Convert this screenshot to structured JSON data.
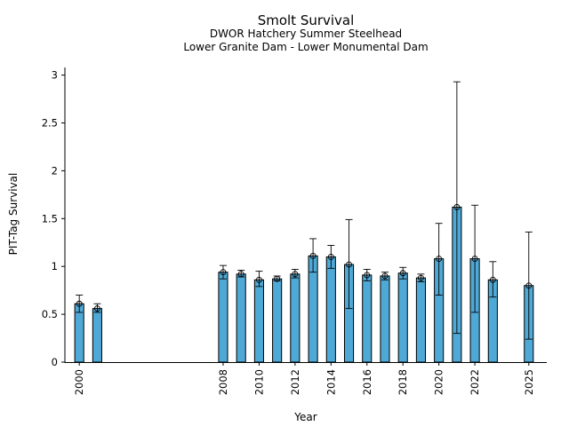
{
  "chart_data": {
    "type": "bar",
    "title": "Smolt Survival",
    "subtitle_lines": [
      "DWOR Hatchery Summer Steelhead",
      "Lower Granite Dam - Lower Monumental Dam"
    ],
    "xlabel": "Year",
    "ylabel": "PIT-Tag Survival",
    "ylim": [
      0,
      3.08
    ],
    "xlim": [
      1999.2,
      2026.0
    ],
    "yticks": [
      0,
      0.5,
      1,
      1.5,
      2,
      2.5,
      3
    ],
    "ytick_labels": [
      "0",
      "0.5",
      "1",
      "1.5",
      "2",
      "2.5",
      "3"
    ],
    "xticks": [
      2000,
      2008,
      2010,
      2012,
      2014,
      2016,
      2018,
      2020,
      2022,
      2025
    ],
    "xtick_labels": [
      "2000",
      "2008",
      "2010",
      "2012",
      "2014",
      "2016",
      "2018",
      "2020",
      "2022",
      "2025"
    ],
    "grid": false,
    "bar_color": "#4fa9d6",
    "points": [
      {
        "year": 2000,
        "value": 0.61,
        "lower": 0.52,
        "upper": 0.7
      },
      {
        "year": 2001,
        "value": 0.56,
        "lower": 0.52,
        "upper": 0.61
      },
      {
        "year": 2008,
        "value": 0.94,
        "lower": 0.87,
        "upper": 1.01
      },
      {
        "year": 2009,
        "value": 0.92,
        "lower": 0.89,
        "upper": 0.96
      },
      {
        "year": 2010,
        "value": 0.86,
        "lower": 0.79,
        "upper": 0.95
      },
      {
        "year": 2011,
        "value": 0.87,
        "lower": 0.85,
        "upper": 0.9
      },
      {
        "year": 2012,
        "value": 0.92,
        "lower": 0.88,
        "upper": 0.97
      },
      {
        "year": 2013,
        "value": 1.11,
        "lower": 0.94,
        "upper": 1.29
      },
      {
        "year": 2014,
        "value": 1.1,
        "lower": 0.98,
        "upper": 1.22
      },
      {
        "year": 2015,
        "value": 1.02,
        "lower": 0.56,
        "upper": 1.49
      },
      {
        "year": 2016,
        "value": 0.91,
        "lower": 0.85,
        "upper": 0.97
      },
      {
        "year": 2017,
        "value": 0.9,
        "lower": 0.86,
        "upper": 0.94
      },
      {
        "year": 2018,
        "value": 0.93,
        "lower": 0.87,
        "upper": 0.99
      },
      {
        "year": 2019,
        "value": 0.88,
        "lower": 0.84,
        "upper": 0.92
      },
      {
        "year": 2020,
        "value": 1.08,
        "lower": 0.7,
        "upper": 1.45
      },
      {
        "year": 2021,
        "value": 1.62,
        "lower": 0.3,
        "upper": 2.93
      },
      {
        "year": 2022,
        "value": 1.08,
        "lower": 0.52,
        "upper": 1.64
      },
      {
        "year": 2023,
        "value": 0.86,
        "lower": 0.68,
        "upper": 1.05
      },
      {
        "year": 2025,
        "value": 0.8,
        "lower": 0.24,
        "upper": 1.36
      }
    ]
  }
}
